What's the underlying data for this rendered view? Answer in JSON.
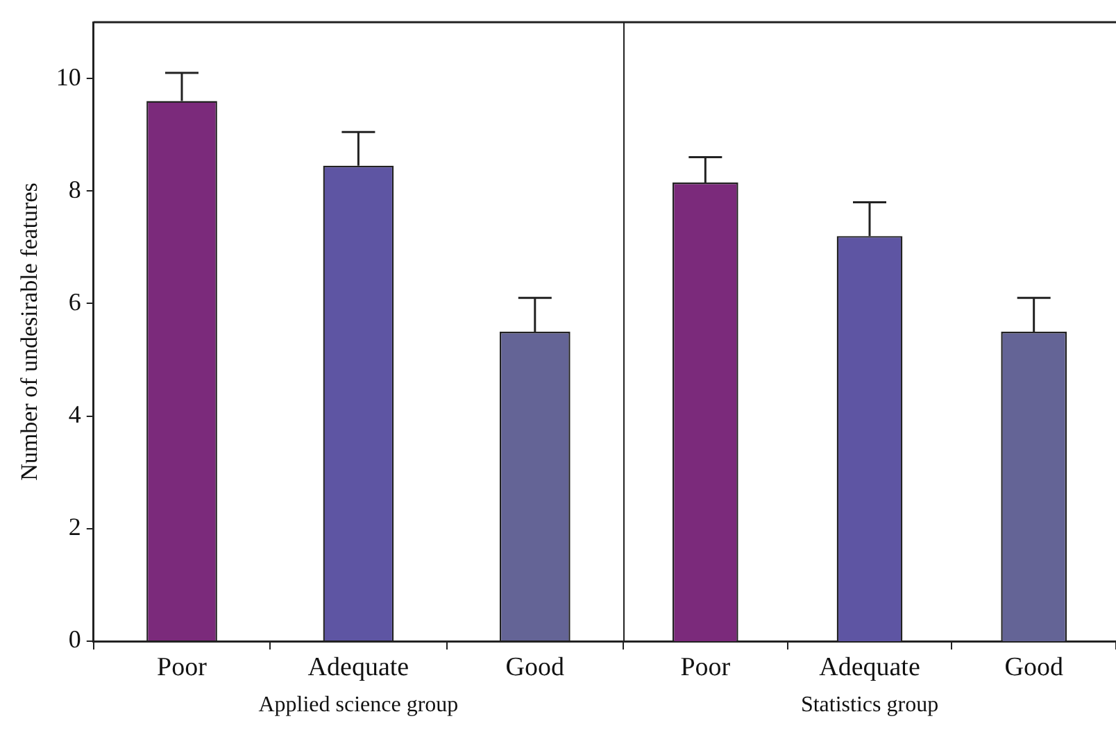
{
  "chart_data": [
    {
      "type": "bar",
      "categories": [
        "Poor",
        "Adequate",
        "Good"
      ],
      "values": [
        9.6,
        8.45,
        5.5
      ],
      "colors": [
        "#7b2a7b",
        "#5e55a3",
        "#646496"
      ],
      "errors": [
        [
          9.6,
          10.1
        ],
        [
          8.45,
          9.05
        ],
        [
          5.5,
          6.1
        ]
      ],
      "xlabel": "Applied science group",
      "ylabel": "Number of undesirable features",
      "ylim": [
        0,
        11
      ],
      "yticks": [
        0,
        2,
        4,
        6,
        8,
        10
      ]
    },
    {
      "type": "bar",
      "categories": [
        "Poor",
        "Adequate",
        "Good"
      ],
      "values": [
        8.15,
        7.2,
        5.5
      ],
      "colors": [
        "#7b2a7b",
        "#5e55a3",
        "#646496"
      ],
      "errors": [
        [
          8.15,
          8.6
        ],
        [
          7.2,
          7.8
        ],
        [
          5.5,
          6.1
        ]
      ],
      "xlabel": "Statistics group",
      "ylim": [
        0,
        11
      ],
      "yticks": [
        0,
        2,
        4,
        6,
        8,
        10
      ],
      "tick_labels": "x"
    }
  ]
}
